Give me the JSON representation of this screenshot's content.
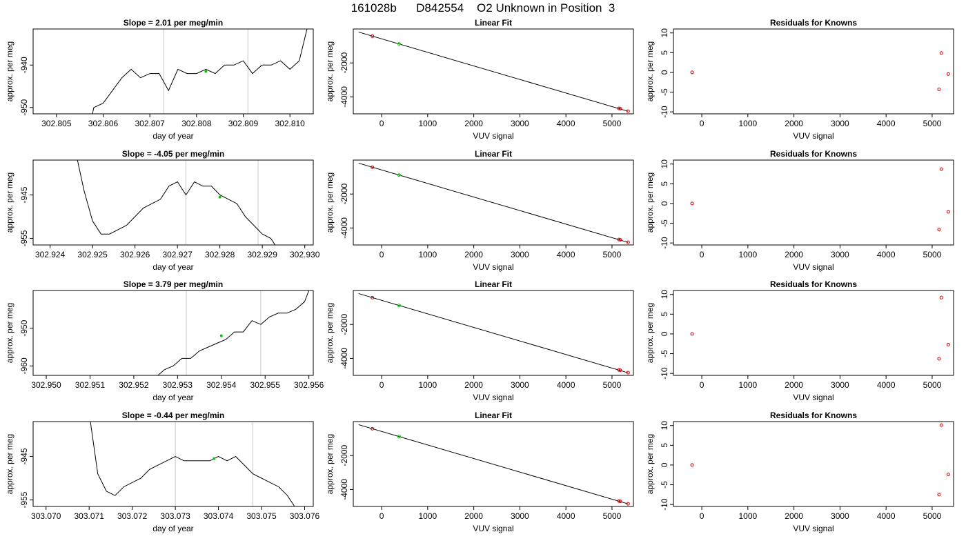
{
  "page_title": "161028b      D842554    O2 Unknown in Position  3",
  "chart_data": [
    {
      "type": "line",
      "title": "Slope =  2.01  per meg/min",
      "xlabel": "day of year",
      "ylabel": "approx. per meg",
      "xlim": [
        302.8045,
        302.8105
      ],
      "ylim": [
        -951.5,
        -931.5
      ],
      "x_ticks": [
        "302.805",
        "302.806",
        "302.807",
        "302.808",
        "302.809",
        "302.810"
      ],
      "y_ticks": [
        "-950",
        "-940"
      ],
      "y_tick_values": [
        -950,
        -940
      ],
      "vlines": [
        302.8073,
        302.8091
      ],
      "series": [
        {
          "x": [
            302.8057,
            302.8058,
            302.806,
            302.8062,
            302.8064,
            302.8066,
            302.8068,
            302.807,
            302.8072,
            302.8074,
            302.8076,
            302.8078,
            302.808,
            302.8082,
            302.8084,
            302.8086,
            302.8088,
            302.809,
            302.8092,
            302.8094,
            302.8096,
            302.8098,
            302.81,
            302.8102,
            302.8104
          ],
          "y": [
            -955,
            -950,
            -949,
            -946,
            -943,
            -941,
            -943,
            -942,
            -942,
            -946,
            -941,
            -942,
            -942,
            -941,
            -942,
            -940,
            -940,
            -939,
            -942,
            -940,
            -940,
            -939,
            -941,
            -939,
            -930
          ]
        }
      ],
      "highlight_points": [
        {
          "x": 302.8082,
          "y": -941.5
        }
      ]
    },
    {
      "type": "line",
      "title": "Slope =  -4.05  per meg/min",
      "xlabel": "day of year",
      "ylabel": "approx. per meg",
      "xlim": [
        302.9236,
        302.9302
      ],
      "ylim": [
        -956.5,
        -937.0
      ],
      "x_ticks": [
        "302.924",
        "302.925",
        "302.926",
        "302.927",
        "302.928",
        "302.929",
        "302.930"
      ],
      "y_ticks": [
        "-955",
        "-945"
      ],
      "y_tick_values": [
        -955,
        -945
      ],
      "vlines": [
        302.9272,
        302.9289
      ],
      "series": [
        {
          "x": [
            302.9246,
            302.9248,
            302.925,
            302.9252,
            302.9254,
            302.9256,
            302.9258,
            302.926,
            302.9262,
            302.9264,
            302.9266,
            302.9268,
            302.927,
            302.9272,
            302.9274,
            302.9276,
            302.9278,
            302.928,
            302.9282,
            302.9284,
            302.9286,
            302.9288,
            302.929,
            302.9292,
            302.9294
          ],
          "y": [
            -935,
            -944,
            -951,
            -954,
            -954,
            -953,
            -952,
            -950,
            -948,
            -947,
            -946,
            -943,
            -942,
            -945,
            -942,
            -943,
            -943,
            -945,
            -946,
            -947,
            -950,
            -952,
            -954,
            -955,
            -958
          ]
        }
      ],
      "highlight_points": [
        {
          "x": 302.928,
          "y": -945.5
        }
      ]
    },
    {
      "type": "line",
      "title": "Slope =  3.79  per meg/min",
      "xlabel": "day of year",
      "ylabel": "approx. per meg",
      "xlim": [
        302.9497,
        302.9561
      ],
      "ylim": [
        -962.5,
        -940.0
      ],
      "x_ticks": [
        "302.950",
        "302.951",
        "302.952",
        "302.953",
        "302.954",
        "302.955",
        "302.956"
      ],
      "y_ticks": [
        "-960",
        "-950"
      ],
      "y_tick_values": [
        -960,
        -950
      ],
      "vlines": [
        302.9532,
        302.9549
      ],
      "series": [
        {
          "x": [
            302.9525,
            302.9527,
            302.9529,
            302.9531,
            302.9533,
            302.9535,
            302.9537,
            302.9539,
            302.9541,
            302.9543,
            302.9545,
            302.9547,
            302.9549,
            302.9551,
            302.9553,
            302.9555,
            302.9557,
            302.9559,
            302.956
          ],
          "y": [
            -963,
            -961,
            -960,
            -958,
            -958,
            -956,
            -955,
            -954,
            -953,
            -951,
            -951,
            -948,
            -949,
            -947,
            -946,
            -946,
            -945,
            -943,
            -940
          ]
        }
      ],
      "highlight_points": [
        {
          "x": 302.954,
          "y": -952
        }
      ]
    },
    {
      "type": "line",
      "title": "Slope =  -0.44  per meg/min",
      "xlabel": "day of year",
      "ylabel": "approx. per meg",
      "xlim": [
        303.0697,
        303.0762
      ],
      "ylim": [
        -956.5,
        -937.0
      ],
      "x_ticks": [
        "303.070",
        "303.071",
        "303.072",
        "303.073",
        "303.074",
        "303.075",
        "303.076"
      ],
      "y_ticks": [
        "-955",
        "-945"
      ],
      "y_tick_values": [
        -955,
        -945
      ],
      "vlines": [
        303.073,
        303.0748
      ],
      "series": [
        {
          "x": [
            303.071,
            303.0712,
            303.0714,
            303.0716,
            303.0718,
            303.072,
            303.0722,
            303.0724,
            303.0726,
            303.0728,
            303.073,
            303.0732,
            303.0734,
            303.0736,
            303.0738,
            303.074,
            303.0742,
            303.0744,
            303.0746,
            303.0748,
            303.075,
            303.0752,
            303.0754,
            303.0756,
            303.0758
          ],
          "y": [
            -935,
            -949,
            -953,
            -954,
            -952,
            -951,
            -950,
            -948,
            -947,
            -946,
            -945,
            -946,
            -946,
            -946,
            -946,
            -945,
            -946,
            -945,
            -947,
            -949,
            -950,
            -951,
            -952,
            -954,
            -957
          ]
        }
      ],
      "highlight_points": [
        {
          "x": 303.0739,
          "y": -945.5
        }
      ]
    },
    {
      "type": "scatter",
      "title": "Linear Fit",
      "xlabel": "VUV signal",
      "ylabel": "approx. per meg",
      "xlim": [
        -615,
        5465
      ],
      "ylim": [
        -5000,
        0
      ],
      "x_ticks": [
        "0",
        "1000",
        "2000",
        "3000",
        "4000",
        "5000"
      ],
      "x_tick_values": [
        0,
        1000,
        2000,
        3000,
        4000,
        5000
      ],
      "y_ticks": [
        "-4000",
        "-2000"
      ],
      "y_tick_values": [
        -4000,
        -2000
      ],
      "fit_line": {
        "x": [
          -500,
          5350
        ],
        "y": [
          -180,
          -4850
        ]
      },
      "known_points": {
        "x": [
          -200,
          5150,
          5180,
          5350
        ],
        "y": [
          -420,
          -4680,
          -4700,
          -4840
        ]
      },
      "unknown_points": {
        "x": [
          380
        ],
        "y": [
          -882
        ]
      }
    },
    {
      "type": "scatter",
      "title": "Linear Fit",
      "xlabel": "VUV signal",
      "ylabel": "approx. per meg",
      "xlim": [
        -615,
        5465
      ],
      "ylim": [
        -5000,
        0
      ],
      "x_ticks": [
        "0",
        "1000",
        "2000",
        "3000",
        "4000",
        "5000"
      ],
      "x_tick_values": [
        0,
        1000,
        2000,
        3000,
        4000,
        5000
      ],
      "y_ticks": [
        "-4000",
        "-2000"
      ],
      "y_tick_values": [
        -4000,
        -2000
      ],
      "fit_line": {
        "x": [
          -500,
          5350
        ],
        "y": [
          -180,
          -4850
        ]
      },
      "known_points": {
        "x": [
          -200,
          5150,
          5180,
          5350
        ],
        "y": [
          -420,
          -4680,
          -4700,
          -4840
        ]
      },
      "unknown_points": {
        "x": [
          380
        ],
        "y": [
          -882
        ]
      }
    },
    {
      "type": "scatter",
      "title": "Linear Fit",
      "xlabel": "VUV signal",
      "ylabel": "approx. per meg",
      "xlim": [
        -615,
        5465
      ],
      "ylim": [
        -5000,
        0
      ],
      "x_ticks": [
        "0",
        "1000",
        "2000",
        "3000",
        "4000",
        "5000"
      ],
      "x_tick_values": [
        0,
        1000,
        2000,
        3000,
        4000,
        5000
      ],
      "y_ticks": [
        "-4000",
        "-2000"
      ],
      "y_tick_values": [
        -4000,
        -2000
      ],
      "fit_line": {
        "x": [
          -500,
          5350
        ],
        "y": [
          -180,
          -4850
        ]
      },
      "known_points": {
        "x": [
          -200,
          5150,
          5180,
          5350
        ],
        "y": [
          -420,
          -4680,
          -4700,
          -4840
        ]
      },
      "unknown_points": {
        "x": [
          380
        ],
        "y": [
          -882
        ]
      }
    },
    {
      "type": "scatter",
      "title": "Linear Fit",
      "xlabel": "VUV signal",
      "ylabel": "approx. per meg",
      "xlim": [
        -615,
        5465
      ],
      "ylim": [
        -5000,
        0
      ],
      "x_ticks": [
        "0",
        "1000",
        "2000",
        "3000",
        "4000",
        "5000"
      ],
      "x_tick_values": [
        0,
        1000,
        2000,
        3000,
        4000,
        5000
      ],
      "y_ticks": [
        "-4000",
        "-2000"
      ],
      "y_tick_values": [
        -4000,
        -2000
      ],
      "fit_line": {
        "x": [
          -500,
          5350
        ],
        "y": [
          -180,
          -4850
        ]
      },
      "known_points": {
        "x": [
          -200,
          5150,
          5180,
          5350
        ],
        "y": [
          -420,
          -4680,
          -4700,
          -4840
        ]
      },
      "unknown_points": {
        "x": [
          380
        ],
        "y": [
          -882
        ]
      }
    },
    {
      "type": "scatter",
      "title": "Residuals for Knowns",
      "xlabel": "VUV signal",
      "ylabel": "approx. per meg",
      "xlim": [
        -615,
        5465
      ],
      "ylim": [
        -10.5,
        11
      ],
      "x_ticks": [
        "0",
        "1000",
        "2000",
        "3000",
        "4000",
        "5000"
      ],
      "x_tick_values": [
        0,
        1000,
        2000,
        3000,
        4000,
        5000
      ],
      "y_ticks": [
        "-10",
        "-5",
        "0",
        "5",
        "10"
      ],
      "y_tick_values": [
        -10,
        -5,
        0,
        5,
        10
      ],
      "points": {
        "x": [
          -210,
          5150,
          5200,
          5350
        ],
        "y": [
          0,
          -4.3,
          4.9,
          -0.4
        ]
      }
    },
    {
      "type": "scatter",
      "title": "Residuals for Knowns",
      "xlabel": "VUV signal",
      "ylabel": "approx. per meg",
      "xlim": [
        -615,
        5465
      ],
      "ylim": [
        -10.5,
        11
      ],
      "x_ticks": [
        "0",
        "1000",
        "2000",
        "3000",
        "4000",
        "5000"
      ],
      "x_tick_values": [
        0,
        1000,
        2000,
        3000,
        4000,
        5000
      ],
      "y_ticks": [
        "-10",
        "-5",
        "0",
        "5",
        "10"
      ],
      "y_tick_values": [
        -10,
        -5,
        0,
        5,
        10
      ],
      "points": {
        "x": [
          -210,
          5150,
          5200,
          5350
        ],
        "y": [
          0,
          -6.6,
          8.7,
          -2.1
        ]
      }
    },
    {
      "type": "scatter",
      "title": "Residuals for Knowns",
      "xlabel": "VUV signal",
      "ylabel": "approx. per meg",
      "xlim": [
        -615,
        5465
      ],
      "ylim": [
        -10.5,
        11
      ],
      "x_ticks": [
        "0",
        "1000",
        "2000",
        "3000",
        "4000",
        "5000"
      ],
      "x_tick_values": [
        0,
        1000,
        2000,
        3000,
        4000,
        5000
      ],
      "y_ticks": [
        "-10",
        "-5",
        "0",
        "5",
        "10"
      ],
      "y_tick_values": [
        -10,
        -5,
        0,
        5,
        10
      ],
      "points": {
        "x": [
          -210,
          5150,
          5200,
          5350
        ],
        "y": [
          0,
          -6.3,
          9.2,
          -2.7
        ]
      }
    },
    {
      "type": "scatter",
      "title": "Residuals for Knowns",
      "xlabel": "VUV signal",
      "ylabel": "approx. per meg",
      "xlim": [
        -615,
        5465
      ],
      "ylim": [
        -10.5,
        11
      ],
      "x_ticks": [
        "0",
        "1000",
        "2000",
        "3000",
        "4000",
        "5000"
      ],
      "x_tick_values": [
        0,
        1000,
        2000,
        3000,
        4000,
        5000
      ],
      "y_ticks": [
        "-10",
        "-5",
        "0",
        "5",
        "10"
      ],
      "y_tick_values": [
        -10,
        -5,
        0,
        5,
        10
      ],
      "points": {
        "x": [
          -210,
          5150,
          5200,
          5350
        ],
        "y": [
          0,
          -7.5,
          10.1,
          -2.4
        ]
      }
    }
  ],
  "colors": {
    "line": "#000000",
    "vline": "#c8c8c8",
    "unknown_point": "#00cc00",
    "known_point": "#cc0000",
    "axis": "#000000"
  }
}
